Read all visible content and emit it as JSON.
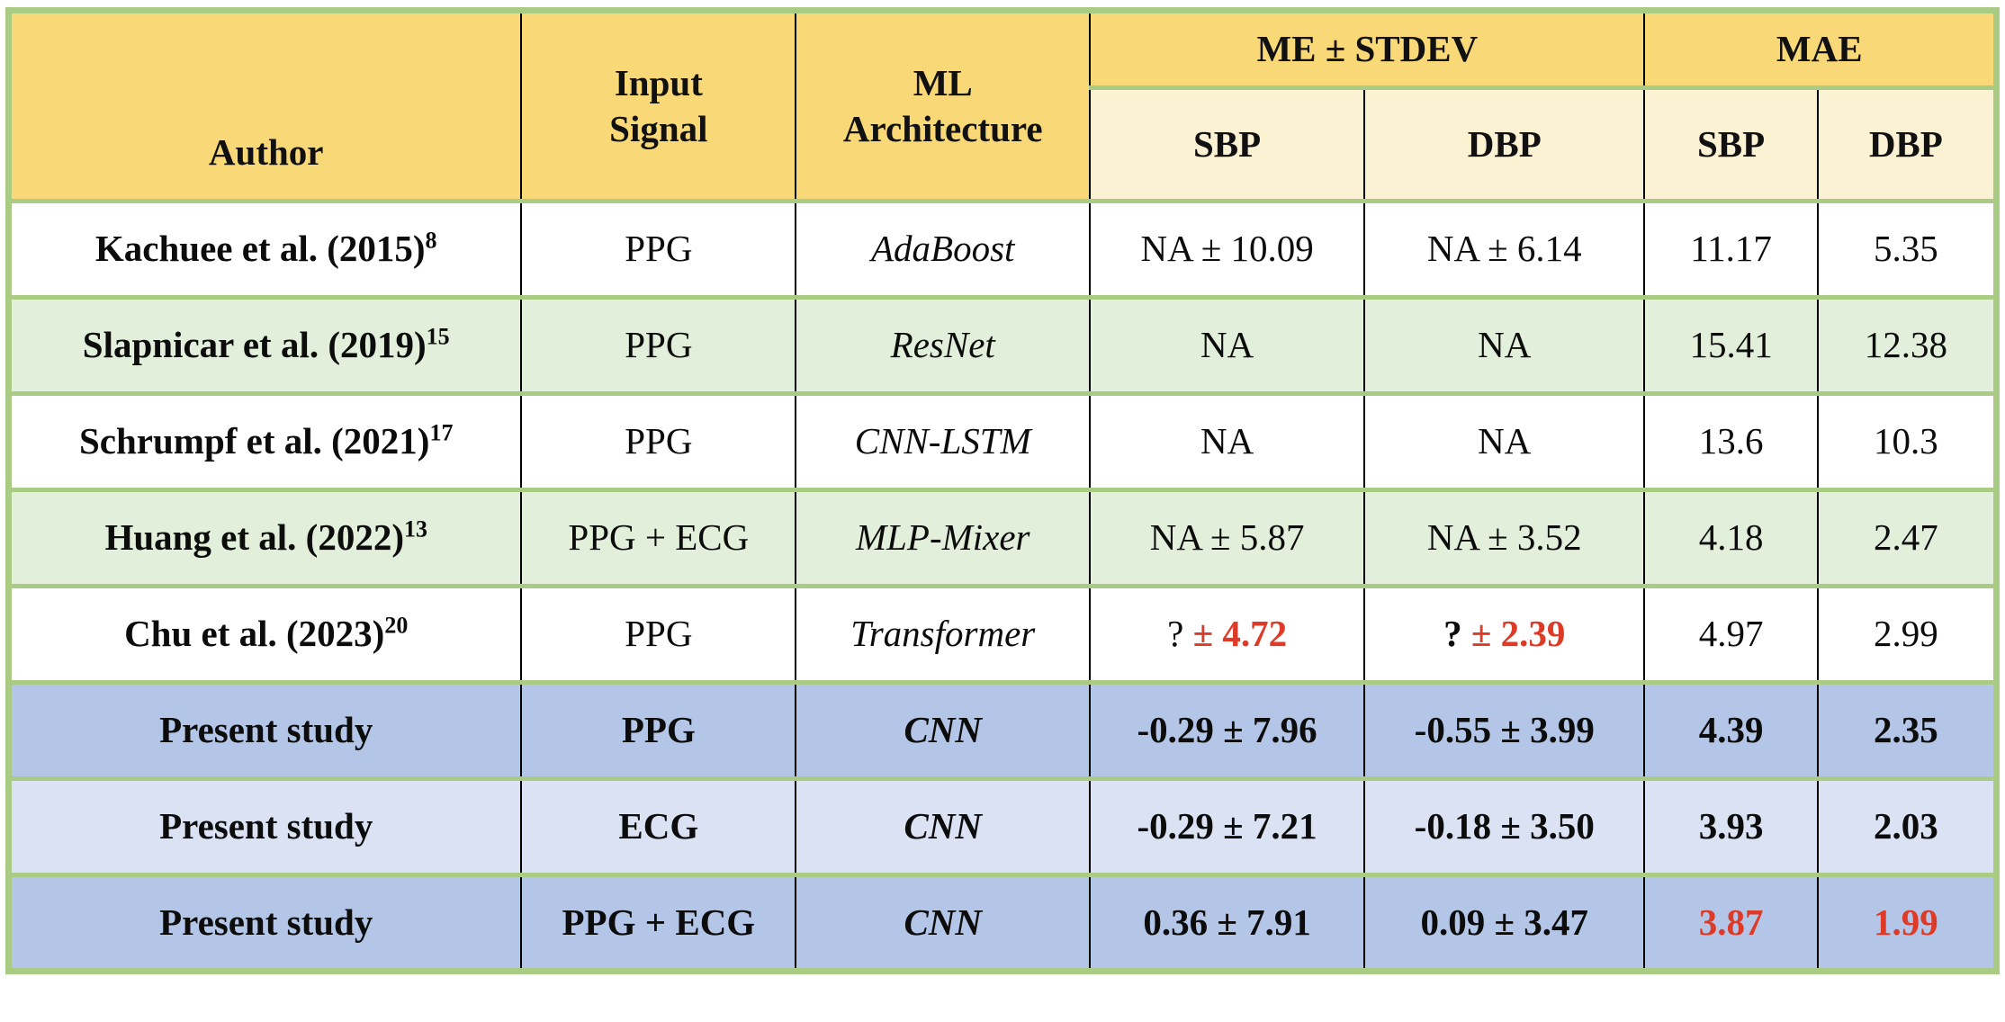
{
  "colors": {
    "header_gold": "#F9D877",
    "subheader_cream": "#FBF1D3",
    "row_green": "#E2EFDA",
    "row_blue": "#B4C6E7",
    "row_blue_light": "#DAE2F3",
    "border_green": "#A9CB84",
    "grid_black": "#000000",
    "highlight_red": "#DD3A27"
  },
  "table": {
    "header": {
      "author": "Author",
      "input_signal": "Input\nSignal",
      "ml_architecture": "ML\nArchitecture",
      "me_stdev": "ME ± STDEV",
      "mae": "MAE",
      "sub": {
        "me_sbp": "SBP",
        "me_dbp": "DBP",
        "mae_sbp": "SBP",
        "mae_dbp": "DBP"
      }
    },
    "rows": [
      {
        "style": "white",
        "bold": false,
        "author": "Kachuee et al. (2015)",
        "author_sup": "8",
        "input": "PPG",
        "arch": "AdaBoost",
        "me_sbp": [
          {
            "text": "NA ± 10.09",
            "cls": "plain"
          }
        ],
        "me_dbp": [
          {
            "text": "NA ± 6.14",
            "cls": "plain"
          }
        ],
        "mae_sbp": [
          {
            "text": "11.17",
            "cls": "plain"
          }
        ],
        "mae_dbp": [
          {
            "text": "5.35",
            "cls": "plain"
          }
        ]
      },
      {
        "style": "green",
        "bold": false,
        "author": "Slapnicar et al. (2019)",
        "author_sup": "15",
        "input": "PPG",
        "arch": "ResNet",
        "me_sbp": [
          {
            "text": "NA",
            "cls": "plain"
          }
        ],
        "me_dbp": [
          {
            "text": "NA",
            "cls": "plain"
          }
        ],
        "mae_sbp": [
          {
            "text": "15.41",
            "cls": "plain"
          }
        ],
        "mae_dbp": [
          {
            "text": "12.38",
            "cls": "plain"
          }
        ]
      },
      {
        "style": "white",
        "bold": false,
        "author": "Schrumpf et al. (2021)",
        "author_sup": "17",
        "input": "PPG",
        "arch": "CNN-LSTM",
        "me_sbp": [
          {
            "text": "NA",
            "cls": "plain"
          }
        ],
        "me_dbp": [
          {
            "text": "NA",
            "cls": "plain"
          }
        ],
        "mae_sbp": [
          {
            "text": "13.6",
            "cls": "plain"
          }
        ],
        "mae_dbp": [
          {
            "text": "10.3",
            "cls": "plain"
          }
        ]
      },
      {
        "style": "green",
        "bold": false,
        "author": "Huang et al. (2022)",
        "author_sup": "13",
        "input": "PPG + ECG",
        "arch": "MLP-Mixer",
        "me_sbp": [
          {
            "text": "NA ± 5.87",
            "cls": "plain"
          }
        ],
        "me_dbp": [
          {
            "text": "NA ± 3.52",
            "cls": "plain"
          }
        ],
        "mae_sbp": [
          {
            "text": "4.18",
            "cls": "plain"
          }
        ],
        "mae_dbp": [
          {
            "text": "2.47",
            "cls": "plain"
          }
        ]
      },
      {
        "style": "white",
        "bold": false,
        "author": "Chu et al. (2023)",
        "author_sup": "20",
        "input": "PPG",
        "arch": "Transformer",
        "me_sbp": [
          {
            "text": "? ",
            "cls": "plain"
          },
          {
            "text": "± 4.72",
            "cls": "red"
          }
        ],
        "me_dbp": [
          {
            "text": "? ",
            "cls": "bold"
          },
          {
            "text": "± 2.39",
            "cls": "red"
          }
        ],
        "mae_sbp": [
          {
            "text": "4.97",
            "cls": "plain"
          }
        ],
        "mae_dbp": [
          {
            "text": "2.99",
            "cls": "plain"
          }
        ]
      },
      {
        "style": "blue",
        "bold": true,
        "author": "Present study",
        "author_sup": "",
        "input": "PPG",
        "arch": "CNN",
        "me_sbp": [
          {
            "text": "-0.29 ± 7.96",
            "cls": "plain"
          }
        ],
        "me_dbp": [
          {
            "text": "-0.55 ± 3.99",
            "cls": "plain"
          }
        ],
        "mae_sbp": [
          {
            "text": "4.39",
            "cls": "plain"
          }
        ],
        "mae_dbp": [
          {
            "text": "2.35",
            "cls": "plain"
          }
        ]
      },
      {
        "style": "blue-light",
        "bold": true,
        "author": "Present study",
        "author_sup": "",
        "input": "ECG",
        "arch": "CNN",
        "me_sbp": [
          {
            "text": "-0.29 ± 7.21",
            "cls": "plain"
          }
        ],
        "me_dbp": [
          {
            "text": "-0.18 ± 3.50",
            "cls": "plain"
          }
        ],
        "mae_sbp": [
          {
            "text": "3.93",
            "cls": "plain"
          }
        ],
        "mae_dbp": [
          {
            "text": "2.03",
            "cls": "plain"
          }
        ]
      },
      {
        "style": "blue",
        "bold": true,
        "author": "Present study",
        "author_sup": "",
        "input": "PPG + ECG",
        "arch": "CNN",
        "me_sbp": [
          {
            "text": "0.36 ± 7.91",
            "cls": "plain"
          }
        ],
        "me_dbp": [
          {
            "text": "0.09 ± 3.47",
            "cls": "plain"
          }
        ],
        "mae_sbp": [
          {
            "text": "3.87",
            "cls": "red"
          }
        ],
        "mae_dbp": [
          {
            "text": "1.99",
            "cls": "red"
          }
        ]
      }
    ]
  }
}
